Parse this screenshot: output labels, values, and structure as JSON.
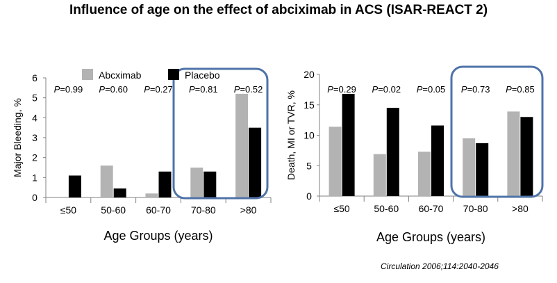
{
  "title": "Influence of age on the effect of abciximab in ACS (ISAR-REACT 2)",
  "citation": "Circulation 2006;114:2040-2046",
  "colors": {
    "abciximab": "#b3b3b3",
    "placebo": "#000000",
    "highlight_box": "#4f73a8",
    "axis": "#808080"
  },
  "chart_data": [
    {
      "type": "bar",
      "categories": [
        "≤50",
        "50-60",
        "60-70",
        "70-80",
        ">80"
      ],
      "series": [
        {
          "name": "Abcximab",
          "values": [
            0,
            1.6,
            0.2,
            1.5,
            5.2
          ]
        },
        {
          "name": "Placebo",
          "values": [
            1.1,
            0.45,
            1.3,
            1.3,
            3.5
          ]
        }
      ],
      "p_values": [
        "P=0.99",
        "P=0.60",
        "P=0.27",
        "P=0.81",
        "P=0.52"
      ],
      "ylabel": "Major Bleeding, %",
      "xlabel": "Age Groups (years)",
      "ylim": [
        0,
        6
      ],
      "yticks": [
        "0",
        "1",
        "2",
        "3",
        "4",
        "5",
        "6"
      ],
      "legend": "top",
      "highlighted_categories": [
        "70-80",
        ">80"
      ]
    },
    {
      "type": "bar",
      "categories": [
        "≤50",
        "50-60",
        "60-70",
        "70-80",
        ">80"
      ],
      "series": [
        {
          "name": "Abcximab",
          "values": [
            11.4,
            6.9,
            7.3,
            9.5,
            13.9
          ]
        },
        {
          "name": "Placebo",
          "values": [
            16.8,
            14.5,
            11.6,
            8.7,
            13.0
          ]
        }
      ],
      "p_values": [
        "P=0.29",
        "P=0.02",
        "P=0.05",
        "P=0.73",
        "P=0.85"
      ],
      "ylabel": "Death, MI or TVR, %",
      "xlabel": "Age Groups (years)",
      "ylim": [
        0,
        20
      ],
      "yticks": [
        "0",
        "5",
        "10",
        "15",
        "20"
      ],
      "highlighted_categories": [
        "70-80",
        ">80"
      ]
    }
  ]
}
